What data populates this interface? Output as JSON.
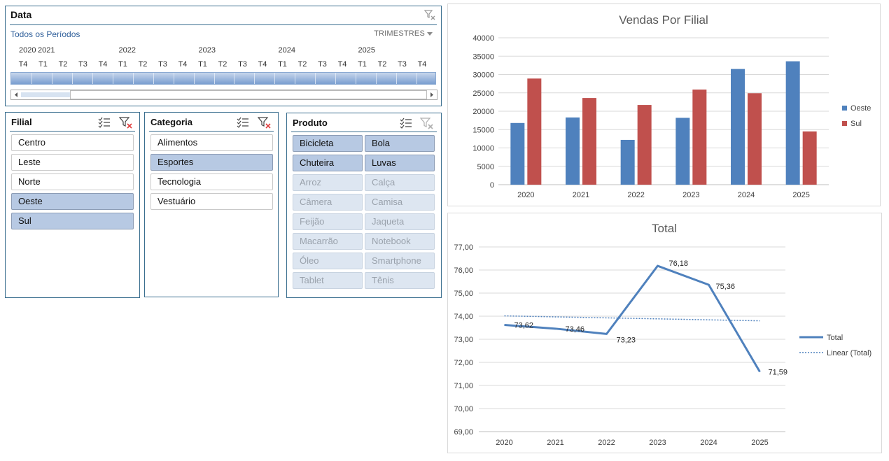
{
  "timeline": {
    "title": "Data",
    "period_label": "Todos os Períodos",
    "level_label": "TRIMESTRES",
    "years": [
      "2020",
      "2021",
      "2022",
      "2023",
      "2024",
      "2025"
    ],
    "quarters": [
      "T4",
      "T1",
      "T2",
      "T3",
      "T4",
      "T1",
      "T2",
      "T3",
      "T4",
      "T1",
      "T2",
      "T3",
      "T4",
      "T1",
      "T2",
      "T3",
      "T4",
      "T1",
      "T2",
      "T3",
      "T4"
    ]
  },
  "slicers": {
    "filial": {
      "title": "Filial",
      "items": [
        {
          "label": "Centro",
          "state": "normal"
        },
        {
          "label": "Leste",
          "state": "normal"
        },
        {
          "label": "Norte",
          "state": "normal"
        },
        {
          "label": "Oeste",
          "state": "selected"
        },
        {
          "label": "Sul",
          "state": "selected"
        }
      ]
    },
    "categoria": {
      "title": "Categoria",
      "items": [
        {
          "label": "Alimentos",
          "state": "normal"
        },
        {
          "label": "Esportes",
          "state": "selected"
        },
        {
          "label": "Tecnologia",
          "state": "normal"
        },
        {
          "label": "Vestuário",
          "state": "normal"
        }
      ]
    },
    "produto": {
      "title": "Produto",
      "items": [
        {
          "label": "Bicicleta",
          "state": "selected"
        },
        {
          "label": "Bola",
          "state": "selected"
        },
        {
          "label": "Chuteira",
          "state": "selected"
        },
        {
          "label": "Luvas",
          "state": "selected"
        },
        {
          "label": "Arroz",
          "state": "dim"
        },
        {
          "label": "Calça",
          "state": "dim"
        },
        {
          "label": "Câmera",
          "state": "dim"
        },
        {
          "label": "Camisa",
          "state": "dim"
        },
        {
          "label": "Feijão",
          "state": "dim"
        },
        {
          "label": "Jaqueta",
          "state": "dim"
        },
        {
          "label": "Macarrão",
          "state": "dim"
        },
        {
          "label": "Notebook",
          "state": "dim"
        },
        {
          "label": "Óleo",
          "state": "dim"
        },
        {
          "label": "Smartphone",
          "state": "dim"
        },
        {
          "label": "Tablet",
          "state": "dim"
        },
        {
          "label": "Tênis",
          "state": "dim"
        }
      ]
    }
  },
  "colors": {
    "oeste": "#4f81bd",
    "sul": "#c0504d",
    "line": "#4f81bd"
  },
  "chart_data": [
    {
      "type": "bar",
      "title": "Vendas Por Filial",
      "categories": [
        "2020",
        "2021",
        "2022",
        "2023",
        "2024",
        "2025"
      ],
      "series": [
        {
          "name": "Oeste",
          "values": [
            16800,
            18300,
            12200,
            18200,
            31500,
            33600
          ]
        },
        {
          "name": "Sul",
          "values": [
            28900,
            23600,
            21700,
            25900,
            24900,
            14500
          ]
        }
      ],
      "ylim": [
        0,
        40000
      ],
      "yticks": [
        "40000",
        "35000",
        "30000",
        "25000",
        "20000",
        "15000",
        "10000",
        "5000",
        "0"
      ],
      "grid": true,
      "legend": "right"
    },
    {
      "type": "line",
      "title": "Total",
      "categories": [
        "2020",
        "2021",
        "2022",
        "2023",
        "2024",
        "2025"
      ],
      "series": [
        {
          "name": "Total",
          "values": [
            73.62,
            73.46,
            73.23,
            76.18,
            75.36,
            71.59
          ],
          "labels": [
            "73,62",
            "73,46",
            "73,23",
            "76,18",
            "75,36",
            "71,59"
          ]
        }
      ],
      "trendline": {
        "name": "Linear (Total)",
        "type": "linear"
      },
      "ylim": [
        69,
        77
      ],
      "yticks": [
        "77,00",
        "76,00",
        "75,00",
        "74,00",
        "73,00",
        "72,00",
        "71,00",
        "70,00",
        "69,00"
      ],
      "grid": true,
      "legend": "right"
    }
  ]
}
